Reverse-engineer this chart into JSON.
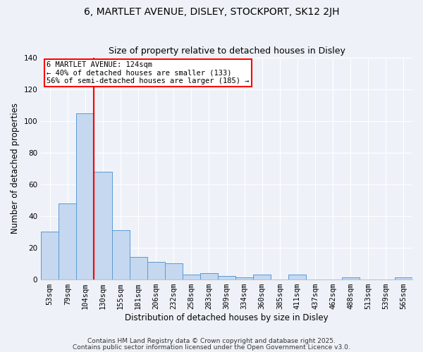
{
  "title": "6, MARTLET AVENUE, DISLEY, STOCKPORT, SK12 2JH",
  "subtitle": "Size of property relative to detached houses in Disley",
  "xlabel": "Distribution of detached houses by size in Disley",
  "ylabel": "Number of detached properties",
  "categories": [
    "53sqm",
    "79sqm",
    "104sqm",
    "130sqm",
    "155sqm",
    "181sqm",
    "206sqm",
    "232sqm",
    "258sqm",
    "283sqm",
    "309sqm",
    "334sqm",
    "360sqm",
    "385sqm",
    "411sqm",
    "437sqm",
    "462sqm",
    "488sqm",
    "513sqm",
    "539sqm",
    "565sqm"
  ],
  "values": [
    30,
    48,
    105,
    68,
    31,
    14,
    11,
    10,
    3,
    4,
    2,
    1,
    3,
    0,
    3,
    0,
    0,
    1,
    0,
    0,
    1
  ],
  "bar_color": "#c5d8f0",
  "bar_edge_color": "#5b9bd5",
  "vline_color": "red",
  "vline_position": 2.5,
  "ylim": [
    0,
    140
  ],
  "yticks": [
    0,
    20,
    40,
    60,
    80,
    100,
    120,
    140
  ],
  "annotation_title": "6 MARTLET AVENUE: 124sqm",
  "annotation_line1": "← 40% of detached houses are smaller (133)",
  "annotation_line2": "56% of semi-detached houses are larger (185) →",
  "footer1": "Contains HM Land Registry data © Crown copyright and database right 2025.",
  "footer2": "Contains public sector information licensed under the Open Government Licence v3.0.",
  "background_color": "#eef2f8",
  "grid_color": "#ffffff",
  "title_fontsize": 10,
  "subtitle_fontsize": 9,
  "axis_label_fontsize": 8.5,
  "tick_fontsize": 7.5,
  "annotation_fontsize": 7.5,
  "footer_fontsize": 6.5
}
